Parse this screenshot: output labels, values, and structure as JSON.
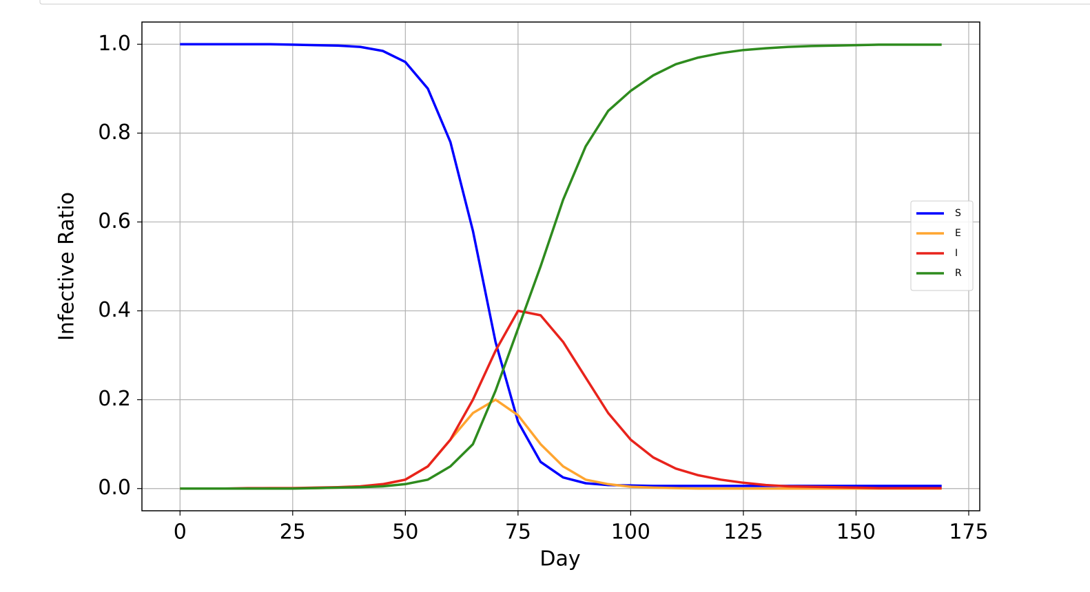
{
  "chart_data": {
    "type": "line",
    "xlabel": "Day",
    "ylabel": "Infective Ratio",
    "x": [
      0,
      5,
      10,
      15,
      20,
      25,
      30,
      35,
      40,
      45,
      50,
      55,
      60,
      65,
      70,
      75,
      80,
      85,
      90,
      95,
      100,
      105,
      110,
      115,
      120,
      125,
      130,
      135,
      140,
      145,
      150,
      155,
      160,
      165,
      169
    ],
    "series": [
      {
        "name": "S",
        "color": "#0000ff",
        "values": [
          1,
          1,
          1,
          1,
          1,
          0.999,
          0.998,
          0.997,
          0.994,
          0.985,
          0.96,
          0.9,
          0.78,
          0.58,
          0.33,
          0.15,
          0.06,
          0.025,
          0.012,
          0.008,
          0.007,
          0.006,
          0.006,
          0.006,
          0.006,
          0.006,
          0.006,
          0.006,
          0.006,
          0.006,
          0.006,
          0.006,
          0.006,
          0.006,
          0.006
        ]
      },
      {
        "name": "E",
        "color": "#ffa530",
        "values": [
          0,
          0,
          0,
          0,
          0.001,
          0.001,
          0.001,
          0.002,
          0.004,
          0.009,
          0.02,
          0.05,
          0.11,
          0.17,
          0.2,
          0.165,
          0.1,
          0.05,
          0.02,
          0.01,
          0.004,
          0.002,
          0.001,
          0,
          0,
          0,
          0,
          0,
          0,
          0,
          0,
          0,
          0,
          0,
          0
        ]
      },
      {
        "name": "I",
        "color": "#e8231c",
        "values": [
          0,
          0,
          0,
          0.001,
          0.001,
          0.001,
          0.002,
          0.003,
          0.005,
          0.01,
          0.02,
          0.05,
          0.11,
          0.2,
          0.31,
          0.4,
          0.39,
          0.33,
          0.25,
          0.17,
          0.11,
          0.07,
          0.045,
          0.03,
          0.02,
          0.013,
          0.008,
          0.005,
          0.004,
          0.003,
          0.002,
          0.001,
          0.001,
          0.001,
          0.001
        ]
      },
      {
        "name": "R",
        "color": "#2e8b1e",
        "values": [
          0,
          0,
          0,
          0,
          0,
          0,
          0.001,
          0.002,
          0.003,
          0.005,
          0.01,
          0.02,
          0.05,
          0.1,
          0.22,
          0.36,
          0.5,
          0.65,
          0.77,
          0.85,
          0.895,
          0.93,
          0.955,
          0.97,
          0.98,
          0.987,
          0.991,
          0.994,
          0.996,
          0.997,
          0.998,
          0.999,
          0.999,
          0.999,
          0.999
        ]
      }
    ],
    "xlim": [
      -8.45,
      177.45
    ],
    "xticks": [
      0,
      25,
      50,
      75,
      100,
      125,
      150,
      175
    ],
    "ylim": [
      -0.05,
      1.05
    ],
    "yticks": [
      {
        "value": 0,
        "label": "0.0"
      },
      0.2,
      0.4,
      0.6,
      0.8,
      {
        "value": 1,
        "label": "1.0"
      }
    ],
    "grid": true,
    "legend": "right"
  }
}
